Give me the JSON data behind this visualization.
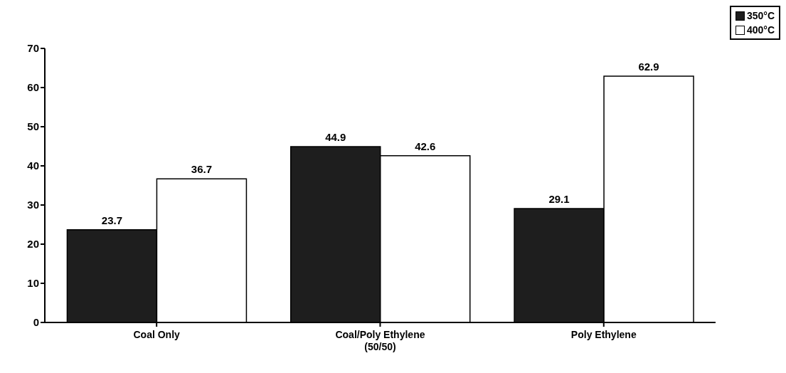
{
  "chart_data": {
    "type": "bar",
    "categories": [
      "Coal Only",
      "Coal/Poly Ethylene\n(50/50)",
      "Poly Ethylene"
    ],
    "series": [
      {
        "name": "350°C",
        "color": "#1e1e1e",
        "values": [
          23.7,
          44.9,
          29.1
        ]
      },
      {
        "name": "400°C",
        "color": "#ffffff",
        "values": [
          36.7,
          42.6,
          62.9
        ]
      }
    ],
    "ylim": [
      0,
      70
    ],
    "yticks": [
      0,
      10,
      20,
      30,
      40,
      50,
      60,
      70
    ],
    "data_labels": true,
    "grid": false,
    "legend": "top right"
  }
}
